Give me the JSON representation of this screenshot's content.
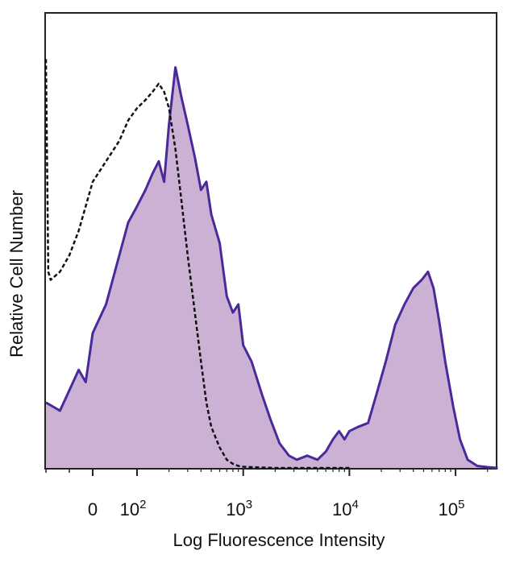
{
  "chart_data": {
    "type": "area",
    "xlabel": "Log Fluorescence Intensity",
    "ylabel": "Relative Cell Number",
    "x_scale": "biexponential",
    "xlim": [
      -1000,
      250000
    ],
    "ylim": [
      0,
      100
    ],
    "x_ticks": [
      {
        "value": 0,
        "label": "0",
        "sup": ""
      },
      {
        "value": 100,
        "label": "10",
        "sup": "2"
      },
      {
        "value": 1000,
        "label": "10",
        "sup": "3"
      },
      {
        "value": 10000,
        "label": "10",
        "sup": "4"
      },
      {
        "value": 100000,
        "label": "10",
        "sup": "5"
      }
    ],
    "grid": false,
    "series": [
      {
        "style": "filled",
        "color": "#4a2a9a",
        "fill": "#cbb2d4",
        "x": [
          -1000,
          -700,
          -500,
          -300,
          -150,
          0,
          30,
          60,
          80,
          100,
          120,
          140,
          160,
          180,
          200,
          230,
          260,
          300,
          350,
          400,
          450,
          500,
          600,
          700,
          800,
          900,
          1000,
          1200,
          1500,
          1800,
          2200,
          2700,
          3200,
          4000,
          5000,
          6000,
          7000,
          8000,
          9000,
          10000,
          12000,
          15000,
          18000,
          22000,
          27000,
          33000,
          40000,
          48000,
          55000,
          62000,
          70000,
          80000,
          95000,
          110000,
          130000,
          160000,
          200000,
          250000
        ],
        "y": [
          16,
          14,
          19,
          24,
          21,
          33,
          40,
          52,
          60,
          64,
          68,
          72,
          75,
          70,
          84,
          98,
          91,
          84,
          76,
          68,
          70,
          62,
          55,
          42,
          38,
          40,
          30,
          26,
          18,
          12,
          6,
          3,
          2,
          3,
          2,
          4,
          7,
          9,
          7,
          9,
          10,
          11,
          18,
          26,
          35,
          40,
          44,
          46,
          48,
          44,
          36,
          26,
          15,
          7,
          2,
          0.5,
          0.2,
          0
        ]
      },
      {
        "style": "dashed",
        "color": "#111111",
        "x": [
          -1000,
          -950,
          -900,
          -700,
          -500,
          -300,
          -150,
          0,
          30,
          60,
          80,
          100,
          120,
          140,
          160,
          180,
          200,
          230,
          260,
          300,
          350,
          400,
          450,
          500,
          600,
          700,
          800,
          900,
          1000,
          1200,
          1500,
          2000,
          3000,
          5000,
          10000
        ],
        "y": [
          100,
          48,
          46,
          48,
          52,
          58,
          64,
          70,
          75,
          80,
          85,
          88,
          90,
          92,
          94,
          92,
          88,
          78,
          66,
          52,
          38,
          26,
          16,
          10,
          5,
          2,
          1,
          0.5,
          0.3,
          0.2,
          0.1,
          0,
          0,
          0,
          0
        ]
      }
    ]
  }
}
